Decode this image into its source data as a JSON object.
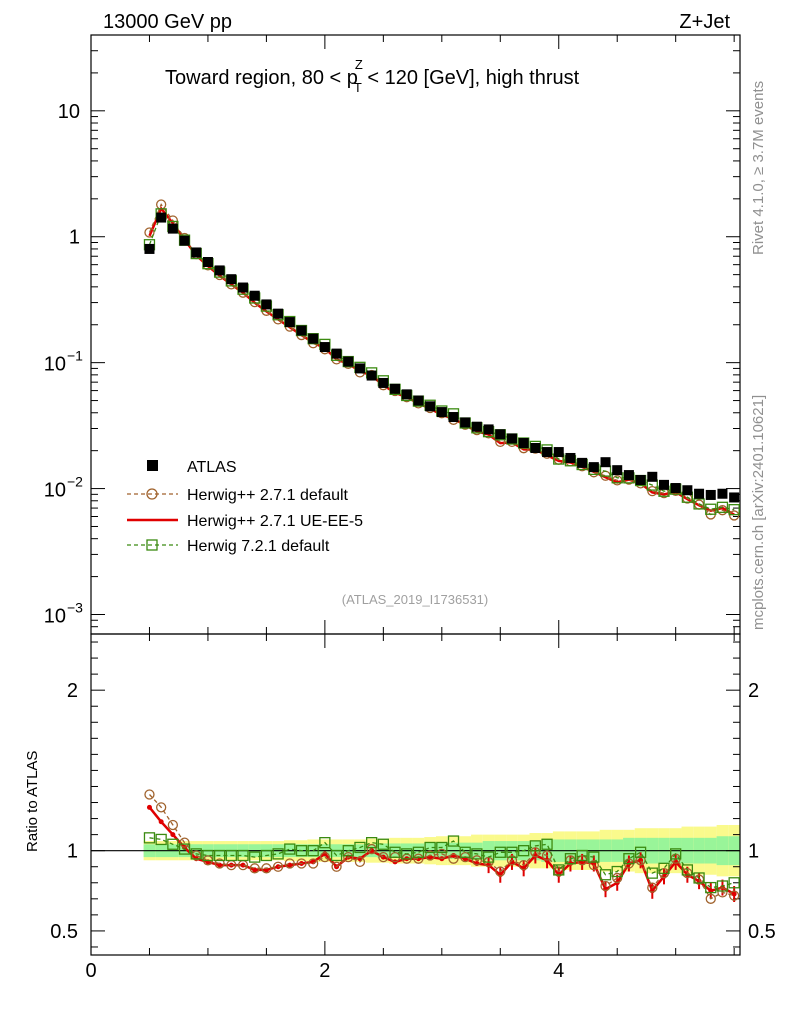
{
  "header": {
    "left": "13000 GeV pp",
    "right": "Z+Jet",
    "plot_title_main": "Toward region, 80 < p",
    "plot_title_sup": "Z",
    "plot_title_sub": "T",
    "plot_title_rest": " < 120 [GeV], high thrust"
  },
  "side": {
    "rivet": "Rivet 4.1.0, ≥ 3.7M events",
    "mcplots": "mcplots.cern.ch [arXiv:2401.10621]"
  },
  "analysis_id": "(ATLAS_2019_I1736531)",
  "legend": [
    {
      "label": "ATLAS",
      "style": "data"
    },
    {
      "label": "Herwig++ 2.7.1 default",
      "style": "circle"
    },
    {
      "label": "Herwig++ 2.7.1 UE-EE-5",
      "style": "line"
    },
    {
      "label": "Herwig 7.2.1 default",
      "style": "square"
    }
  ],
  "colors": {
    "data": "#000000",
    "herwig_default": "#a0622c",
    "herwig_uee5": "#e00000",
    "herwig721": "#3a8a10",
    "band_inner": "#99f599",
    "band_outer": "#fafa8c"
  },
  "chart_data": {
    "type": "line",
    "title": "Toward region, 80 < pT^Z < 120 [GeV], high thrust",
    "xlim": [
      0,
      5.55
    ],
    "main_panel": {
      "ylabel": "",
      "yscale": "log",
      "ylim": [
        0.0007,
        40
      ],
      "ytick_labels": [
        {
          "value": 10,
          "label": "10",
          "exp": ""
        },
        {
          "value": 1,
          "label": "1",
          "exp": ""
        },
        {
          "value": 0.1,
          "label": "10",
          "exp": "−1"
        },
        {
          "value": 0.01,
          "label": "10",
          "exp": "−2"
        },
        {
          "value": 0.001,
          "label": "10",
          "exp": "−3"
        }
      ]
    },
    "ratio_panel": {
      "ylabel": "Ratio to ATLAS",
      "ylim": [
        0.35,
        2.35
      ],
      "ytick_labels": [
        {
          "value": 0.5,
          "label": "0.5"
        },
        {
          "value": 1,
          "label": "1"
        },
        {
          "value": 2,
          "label": "2"
        }
      ]
    },
    "xtick_labels": [
      {
        "value": 0,
        "label": "0"
      },
      {
        "value": 2,
        "label": "2"
      },
      {
        "value": 4,
        "label": "4"
      }
    ],
    "x": [
      0.5,
      0.6,
      0.7,
      0.8,
      0.9,
      1.0,
      1.1,
      1.2,
      1.3,
      1.4,
      1.5,
      1.6,
      1.7,
      1.8,
      1.9,
      2.0,
      2.1,
      2.2,
      2.3,
      2.4,
      2.5,
      2.6,
      2.7,
      2.8,
      2.9,
      3.0,
      3.1,
      3.2,
      3.3,
      3.4,
      3.5,
      3.6,
      3.7,
      3.8,
      3.9,
      4.0,
      4.1,
      4.2,
      4.3,
      4.4,
      4.5,
      4.6,
      4.7,
      4.8,
      4.9,
      5.0,
      5.1,
      5.2,
      5.3,
      5.4,
      5.5
    ],
    "series": [
      {
        "name": "ATLAS",
        "values": [
          0.8,
          1.42,
          1.16,
          0.93,
          0.75,
          0.63,
          0.54,
          0.46,
          0.395,
          0.34,
          0.29,
          0.245,
          0.21,
          0.18,
          0.155,
          0.133,
          0.118,
          0.102,
          0.09,
          0.079,
          0.069,
          0.062,
          0.056,
          0.05,
          0.045,
          0.0405,
          0.037,
          0.0335,
          0.031,
          0.0295,
          0.027,
          0.025,
          0.023,
          0.021,
          0.0195,
          0.0195,
          0.0175,
          0.016,
          0.0148,
          0.0162,
          0.014,
          0.0128,
          0.0117,
          0.0124,
          0.0107,
          0.0101,
          0.0097,
          0.0091,
          0.0089,
          0.0091,
          0.0085
        ],
        "ratio": [
          1,
          1,
          1,
          1,
          1,
          1,
          1,
          1,
          1,
          1,
          1,
          1,
          1,
          1,
          1,
          1,
          1,
          1,
          1,
          1,
          1,
          1,
          1,
          1,
          1,
          1,
          1,
          1,
          1,
          1,
          1,
          1,
          1,
          1,
          1,
          1,
          1,
          1,
          1,
          1,
          1,
          1,
          1,
          1,
          1,
          1,
          1,
          1,
          1,
          1,
          1
        ]
      },
      {
        "name": "Herwig++ 2.7.1 default",
        "ratio": [
          1.35,
          1.27,
          1.16,
          1.05,
          0.97,
          0.94,
          0.92,
          0.91,
          0.91,
          0.89,
          0.89,
          0.9,
          0.92,
          0.92,
          0.92,
          0.96,
          0.9,
          0.96,
          0.93,
          1.01,
          0.96,
          0.96,
          0.95,
          0.95,
          0.97,
          0.98,
          0.95,
          0.96,
          0.94,
          0.93,
          0.87,
          0.94,
          0.91,
          0.99,
          0.97,
          0.87,
          0.94,
          0.94,
          0.91,
          0.78,
          0.83,
          0.92,
          0.94,
          0.77,
          0.86,
          0.95,
          0.86,
          0.82,
          0.7,
          0.74,
          0.72
        ]
      },
      {
        "name": "Herwig++ 2.7.1 UE-EE-5",
        "ratio": [
          1.27,
          1.18,
          1.1,
          1.02,
          0.95,
          0.93,
          0.91,
          0.91,
          0.91,
          0.88,
          0.88,
          0.9,
          0.91,
          0.92,
          0.93,
          0.98,
          0.9,
          0.96,
          0.95,
          1.0,
          0.96,
          0.93,
          0.95,
          0.95,
          0.96,
          0.95,
          0.97,
          0.95,
          0.92,
          0.91,
          0.85,
          0.93,
          0.89,
          0.97,
          0.94,
          0.85,
          0.92,
          0.93,
          0.92,
          0.76,
          0.8,
          0.92,
          0.94,
          0.75,
          0.84,
          0.93,
          0.85,
          0.81,
          0.75,
          0.77,
          0.73
        ]
      },
      {
        "name": "Herwig 7.2.1 default",
        "ratio": [
          1.08,
          1.07,
          1.04,
          1.01,
          0.98,
          0.97,
          0.97,
          0.97,
          0.97,
          0.96,
          0.97,
          0.98,
          1.01,
          1.0,
          1.0,
          1.05,
          0.97,
          1.0,
          1.02,
          1.05,
          1.04,
          0.99,
          0.98,
          0.99,
          1.02,
          1.02,
          1.06,
          0.99,
          0.98,
          0.96,
          0.99,
          0.99,
          1.0,
          1.03,
          1.04,
          0.88,
          0.95,
          0.97,
          0.96,
          0.85,
          0.87,
          0.95,
          0.99,
          0.86,
          0.89,
          0.98,
          0.88,
          0.83,
          0.77,
          0.78,
          0.8
        ]
      }
    ],
    "band_inner": [
      0.04,
      0.04,
      0.04,
      0.04,
      0.04,
      0.04,
      0.04,
      0.04,
      0.04,
      0.04,
      0.04,
      0.04,
      0.04,
      0.04,
      0.04,
      0.04,
      0.04,
      0.04,
      0.04,
      0.04,
      0.045,
      0.045,
      0.045,
      0.045,
      0.05,
      0.05,
      0.05,
      0.05,
      0.05,
      0.06,
      0.06,
      0.06,
      0.06,
      0.06,
      0.07,
      0.07,
      0.07,
      0.07,
      0.07,
      0.07,
      0.07,
      0.08,
      0.08,
      0.08,
      0.08,
      0.08,
      0.08,
      0.08,
      0.08,
      0.09,
      0.09
    ],
    "band_outer": [
      0.06,
      0.06,
      0.06,
      0.06,
      0.06,
      0.06,
      0.06,
      0.06,
      0.06,
      0.06,
      0.06,
      0.06,
      0.065,
      0.065,
      0.07,
      0.07,
      0.07,
      0.07,
      0.07,
      0.075,
      0.075,
      0.08,
      0.08,
      0.08,
      0.085,
      0.09,
      0.09,
      0.09,
      0.1,
      0.1,
      0.1,
      0.1,
      0.1,
      0.11,
      0.11,
      0.12,
      0.12,
      0.12,
      0.12,
      0.13,
      0.13,
      0.13,
      0.14,
      0.14,
      0.14,
      0.14,
      0.15,
      0.15,
      0.15,
      0.16,
      0.16
    ]
  }
}
